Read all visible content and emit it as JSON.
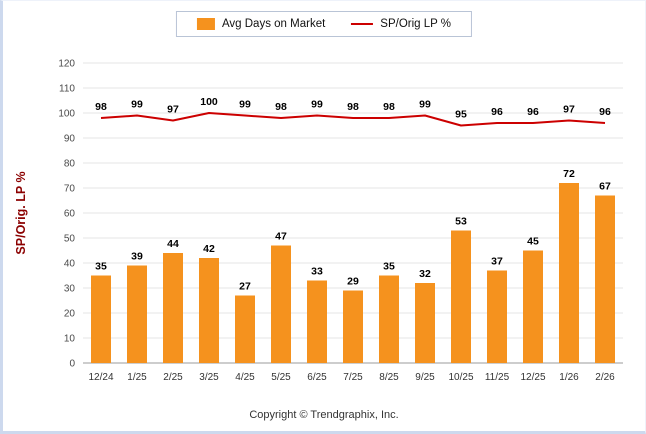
{
  "legend": {
    "items": [
      {
        "label": "Avg Days on Market",
        "type": "bar",
        "color": "#F5921E"
      },
      {
        "label": "SP/Orig LP %",
        "type": "line",
        "color": "#CC0000"
      }
    ]
  },
  "footer": {
    "text": "Copyright © Trendgraphix, Inc."
  },
  "chart_data": {
    "type": "bar",
    "title": "",
    "xlabel": "",
    "ylabel": "SP/Orig. LP %",
    "ylim": [
      0,
      120
    ],
    "ytick_step": 10,
    "grid": true,
    "legend_position": "top",
    "categories": [
      "12/24",
      "1/25",
      "2/25",
      "3/25",
      "4/25",
      "5/25",
      "6/25",
      "7/25",
      "8/25",
      "9/25",
      "10/25",
      "11/25",
      "12/25",
      "1/26",
      "2/26"
    ],
    "series": [
      {
        "name": "Avg Days on Market",
        "type": "bar",
        "color": "#F5921E",
        "values": [
          35,
          39,
          44,
          42,
          27,
          47,
          33,
          29,
          35,
          32,
          53,
          37,
          45,
          72,
          67
        ]
      },
      {
        "name": "SP/Orig LP %",
        "type": "line",
        "color": "#CC0000",
        "values": [
          98,
          99,
          97,
          100,
          99,
          98,
          99,
          98,
          98,
          99,
          95,
          96,
          96,
          97,
          96
        ]
      }
    ]
  }
}
